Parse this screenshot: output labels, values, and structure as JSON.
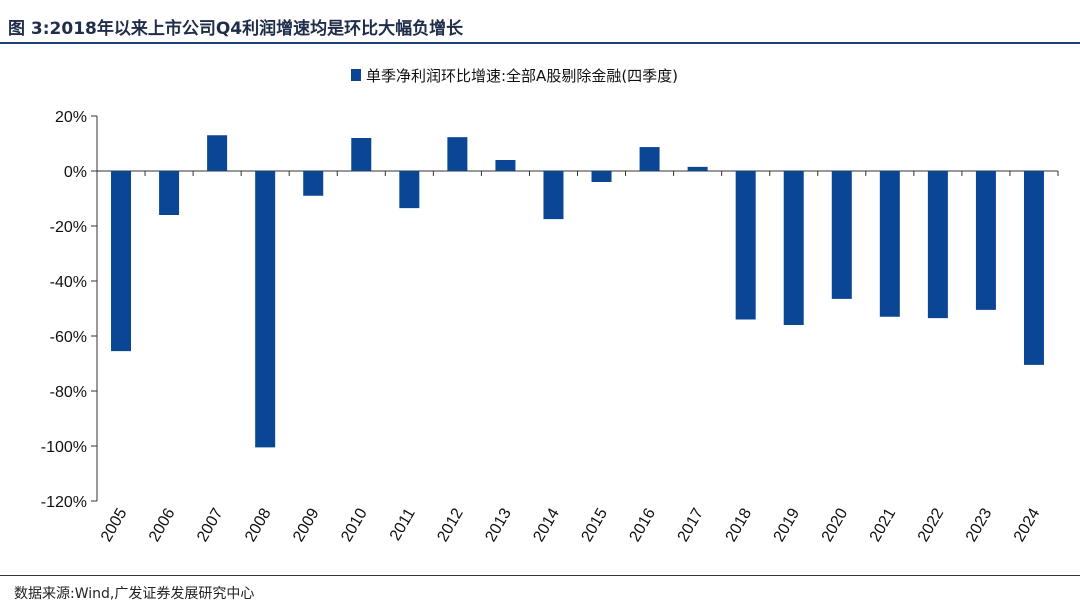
{
  "title": "图 3:2018年以来上市公司Q4利润增速均是环比大幅负增长",
  "source": "数据来源:Wind,广发证券发展研究中心",
  "colors": {
    "bar": "#0a4694",
    "accent": "#1f3f7a"
  },
  "chart_data": {
    "type": "bar",
    "categories": [
      "2005",
      "2006",
      "2007",
      "2008",
      "2009",
      "2010",
      "2011",
      "2012",
      "2013",
      "2014",
      "2015",
      "2016",
      "2017",
      "2018",
      "2019",
      "2020",
      "2021",
      "2022",
      "2023",
      "2024"
    ],
    "series": [
      {
        "name": "单季净利润环比增速:全部A股剔除金融(四季度)",
        "values": [
          -65.5,
          -16,
          13,
          -100.5,
          -9,
          12,
          -13.5,
          12.3,
          4,
          -17.5,
          -4,
          8.7,
          1.5,
          -54,
          -56,
          -46.5,
          -53,
          -53.5,
          -50.5,
          -70.5
        ]
      }
    ],
    "yticks": [
      20,
      0,
      -20,
      -40,
      -60,
      -80,
      -100,
      -120
    ],
    "ytick_labels": [
      "20%",
      "0%",
      "-20%",
      "-40%",
      "-60%",
      "-80%",
      "-100%",
      "-120%"
    ],
    "ylim": [
      -120,
      20
    ],
    "legend_position": "top-center",
    "grid": false
  }
}
